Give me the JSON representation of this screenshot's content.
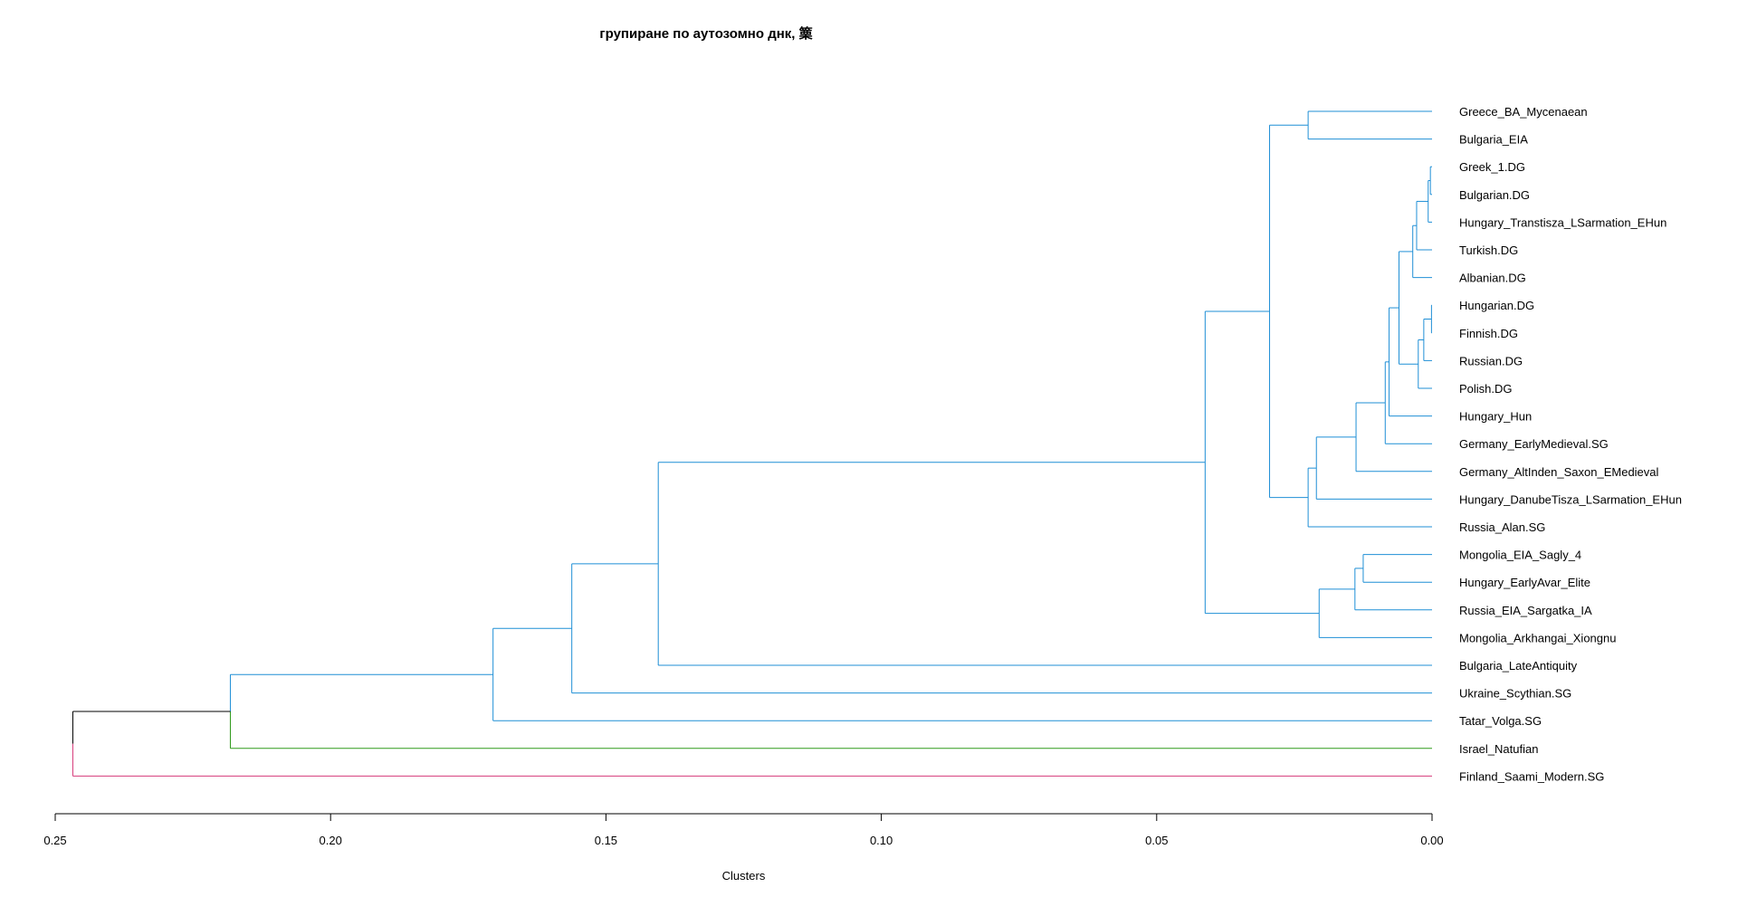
{
  "chart_data": {
    "type": "dendrogram",
    "title": "групиране по аутозомно днк, 篥",
    "xlabel": "Clusters",
    "xlim": [
      0.25,
      0.0
    ],
    "x_ticks": [
      "0.25",
      "0.20",
      "0.15",
      "0.10",
      "0.05",
      "0.00"
    ],
    "leaves": [
      "Greece_BA_Mycenaean",
      "Bulgaria_EIA",
      "Greek_1.DG",
      "Bulgarian.DG",
      "Hungary_Transtisza_LSarmation_EHun",
      "Turkish.DG",
      "Albanian.DG",
      "Hungarian.DG",
      "Finnish.DG",
      "Russian.DG",
      "Polish.DG",
      "Hungary_Hun",
      "Germany_EarlyMedieval.SG",
      "Germany_AltInden_Saxon_EMedieval",
      "Hungary_DanubeTisza_LSarmation_EHun",
      "Russia_Alan.SG",
      "Mongolia_EIA_Sagly_4",
      "Hungary_EarlyAvar_Elite",
      "Russia_EIA_Sargatka_IA",
      "Mongolia_Arkhangai_Xiongnu",
      "Bulgaria_LateAntiquity",
      "Ukraine_Scythian.SG",
      "Tatar_Volga.SG",
      "Israel_Natufian",
      "Finland_Saami_Modern.SG"
    ],
    "merges": [
      {
        "id": "c01",
        "children": [
          "Greek_1.DG",
          "Bulgarian.DG"
        ],
        "height": 0.0003,
        "color": "#1f8fd6"
      },
      {
        "id": "c02",
        "children": [
          "c01",
          "Hungary_Transtisza_LSarmation_EHun"
        ],
        "height": 0.0007,
        "color": "#1f8fd6"
      },
      {
        "id": "c03",
        "children": [
          "c02",
          "Turkish.DG"
        ],
        "height": 0.0028,
        "color": "#1f8fd6"
      },
      {
        "id": "c04",
        "children": [
          "c03",
          "Albanian.DG"
        ],
        "height": 0.0035,
        "color": "#1f8fd6"
      },
      {
        "id": "c05",
        "children": [
          "Hungarian.DG",
          "Finnish.DG"
        ],
        "height": 0.0001,
        "color": "#1f8fd6"
      },
      {
        "id": "c06",
        "children": [
          "c05",
          "Russian.DG"
        ],
        "height": 0.0015,
        "color": "#1f8fd6"
      },
      {
        "id": "c07",
        "children": [
          "c06",
          "Polish.DG"
        ],
        "height": 0.0025,
        "color": "#1f8fd6"
      },
      {
        "id": "c08",
        "children": [
          "c04",
          "c07"
        ],
        "height": 0.006,
        "color": "#1f8fd6"
      },
      {
        "id": "c09",
        "children": [
          "c08",
          "Hungary_Hun"
        ],
        "height": 0.0078,
        "color": "#1f8fd6"
      },
      {
        "id": "c10",
        "children": [
          "c09",
          "Germany_EarlyMedieval.SG"
        ],
        "height": 0.0085,
        "color": "#1f8fd6"
      },
      {
        "id": "c11",
        "children": [
          "c10",
          "Germany_AltInden_Saxon_EMedieval"
        ],
        "height": 0.0138,
        "color": "#1f8fd6"
      },
      {
        "id": "c12",
        "children": [
          "c11",
          "Hungary_DanubeTisza_LSarmation_EHun"
        ],
        "height": 0.021,
        "color": "#1f8fd6"
      },
      {
        "id": "c13",
        "children": [
          "c12",
          "Russia_Alan.SG"
        ],
        "height": 0.0225,
        "color": "#1f8fd6"
      },
      {
        "id": "c14",
        "children": [
          "Greece_BA_Mycenaean",
          "Bulgaria_EIA"
        ],
        "height": 0.0225,
        "color": "#1f8fd6"
      },
      {
        "id": "c15",
        "children": [
          "c14",
          "c13"
        ],
        "height": 0.0295,
        "color": "#1f8fd6"
      },
      {
        "id": "c16",
        "children": [
          "Mongolia_EIA_Sagly_4",
          "Hungary_EarlyAvar_Elite"
        ],
        "height": 0.0125,
        "color": "#1f8fd6"
      },
      {
        "id": "c17",
        "children": [
          "c16",
          "Russia_EIA_Sargatka_IA"
        ],
        "height": 0.014,
        "color": "#1f8fd6"
      },
      {
        "id": "c18",
        "children": [
          "c17",
          "Mongolia_Arkhangai_Xiongnu"
        ],
        "height": 0.0205,
        "color": "#1f8fd6"
      },
      {
        "id": "c19",
        "children": [
          "c15",
          "c18"
        ],
        "height": 0.0412,
        "color": "#1f8fd6"
      },
      {
        "id": "c20",
        "children": [
          "c19",
          "Bulgaria_LateAntiquity"
        ],
        "height": 0.1405,
        "color": "#1f8fd6"
      },
      {
        "id": "c21",
        "children": [
          "c20",
          "Ukraine_Scythian.SG"
        ],
        "height": 0.1562,
        "color": "#1f8fd6"
      },
      {
        "id": "c22",
        "children": [
          "c21",
          "Tatar_Volga.SG"
        ],
        "height": 0.1705,
        "color": "#1f8fd6"
      },
      {
        "id": "c23",
        "children": [
          "c22",
          "Israel_Natufian"
        ],
        "height": 0.2182,
        "color": "#1f8fd6",
        "child_colors": [
          "#1f8fd6",
          "#2e9a1a"
        ]
      },
      {
        "id": "c24",
        "children": [
          "c23",
          "Finland_Saami_Modern.SG"
        ],
        "height": 0.2468,
        "color": "#000000",
        "child_colors": [
          "#000000",
          "#d63a7a"
        ]
      }
    ],
    "grid": false,
    "legend": "none"
  }
}
